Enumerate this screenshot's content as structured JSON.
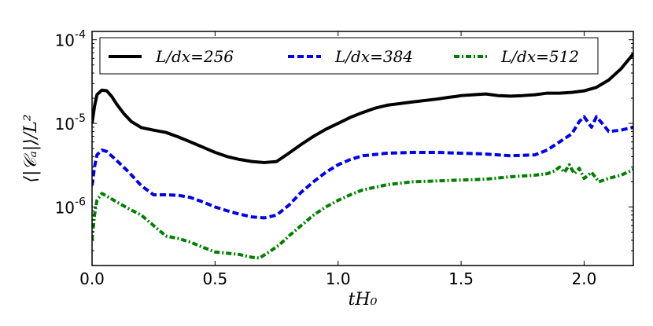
{
  "chart_data": {
    "type": "line",
    "title": "",
    "xlabel": "tH₀",
    "ylabel": "⟨|𝒞ₐ|⟩/L²",
    "xlim": [
      0.0,
      2.2
    ],
    "ylim_log10": [
      -6.7,
      -3.9
    ],
    "yscale": "log",
    "x_ticks": [
      0.0,
      0.5,
      1.0,
      1.5,
      2.0
    ],
    "x_tick_labels": [
      "0.0",
      "0.5",
      "1.0",
      "1.5",
      "2.0"
    ],
    "y_ticks": [
      {
        "base": "10",
        "exp": "-6",
        "log10": -6
      },
      {
        "base": "10",
        "exp": "-5",
        "log10": -5
      },
      {
        "base": "10",
        "exp": "-4",
        "log10": -4
      }
    ],
    "legend": {
      "placement": "top"
    },
    "series": [
      {
        "name": "L/dx = 256",
        "legend_label": "L/dx=256",
        "color": "#000000",
        "style": "solid",
        "x": [
          0.0,
          0.01,
          0.02,
          0.04,
          0.06,
          0.08,
          0.1,
          0.13,
          0.16,
          0.2,
          0.25,
          0.3,
          0.35,
          0.4,
          0.45,
          0.5,
          0.55,
          0.6,
          0.65,
          0.7,
          0.75,
          0.8,
          0.85,
          0.9,
          0.95,
          1.0,
          1.05,
          1.1,
          1.15,
          1.2,
          1.3,
          1.4,
          1.45,
          1.48,
          1.5,
          1.55,
          1.6,
          1.65,
          1.7,
          1.75,
          1.8,
          1.85,
          1.9,
          1.95,
          2.0,
          2.05,
          2.1,
          2.15,
          2.2
        ],
        "y": [
          1e-05,
          1.6e-05,
          2.2e-05,
          2.5e-05,
          2.45e-05,
          2.1e-05,
          1.7e-05,
          1.3e-05,
          1.05e-05,
          8.9e-06,
          8.3e-06,
          7.8e-06,
          6.9e-06,
          6e-06,
          5.2e-06,
          4.5e-06,
          4e-06,
          3.7e-06,
          3.5e-06,
          3.4e-06,
          3.5e-06,
          4.4e-06,
          5.6e-06,
          7e-06,
          8.5e-06,
          1e-05,
          1.18e-05,
          1.35e-05,
          1.52e-05,
          1.65e-05,
          1.8e-05,
          1.95e-05,
          2.05e-05,
          2.1e-05,
          2.15e-05,
          2.2e-05,
          2.25e-05,
          2.15e-05,
          2.12e-05,
          2.15e-05,
          2.2e-05,
          2.3e-05,
          2.3e-05,
          2.35e-05,
          2.45e-05,
          2.7e-05,
          3.3e-05,
          4.5e-05,
          6.8e-05
        ]
      },
      {
        "name": "L/dx = 384",
        "legend_label": "L/dx=384",
        "color": "#0000ee",
        "style": "dashed",
        "x": [
          0.0,
          0.01,
          0.02,
          0.04,
          0.06,
          0.1,
          0.15,
          0.2,
          0.25,
          0.3,
          0.35,
          0.4,
          0.45,
          0.5,
          0.55,
          0.6,
          0.65,
          0.7,
          0.75,
          0.8,
          0.85,
          0.9,
          0.95,
          1.0,
          1.05,
          1.1,
          1.2,
          1.3,
          1.4,
          1.5,
          1.6,
          1.7,
          1.8,
          1.85,
          1.9,
          1.95,
          1.98,
          2.0,
          2.03,
          2.05,
          2.08,
          2.1,
          2.15,
          2.2
        ],
        "y": [
          1.8e-06,
          3e-06,
          4.2e-06,
          4.8e-06,
          4.6e-06,
          3.6e-06,
          2.6e-06,
          1.8e-06,
          1.4e-06,
          1.4e-06,
          1.38e-06,
          1.3e-06,
          1.15e-06,
          1e-06,
          9e-07,
          8.2e-07,
          7.6e-07,
          7.4e-07,
          8e-07,
          1.05e-06,
          1.5e-06,
          2e-06,
          2.6e-06,
          3.2e-06,
          3.7e-06,
          4.1e-06,
          4.4e-06,
          4.5e-06,
          4.5e-06,
          4.4e-06,
          4.3e-06,
          4.1e-06,
          4.2e-06,
          4.8e-06,
          6e-06,
          7.5e-06,
          1.05e-05,
          1.2e-05,
          9e-06,
          1.2e-05,
          9.5e-06,
          8e-06,
          8.3e-06,
          9e-06
        ]
      },
      {
        "name": "L/dx = 512",
        "legend_label": "L/dx=512",
        "color": "#007f00",
        "style": "dashdot",
        "x": [
          0.0,
          0.01,
          0.02,
          0.04,
          0.06,
          0.1,
          0.15,
          0.2,
          0.25,
          0.3,
          0.35,
          0.4,
          0.45,
          0.5,
          0.55,
          0.6,
          0.65,
          0.68,
          0.72,
          0.76,
          0.8,
          0.85,
          0.9,
          0.95,
          1.0,
          1.05,
          1.1,
          1.2,
          1.3,
          1.4,
          1.5,
          1.6,
          1.7,
          1.8,
          1.85,
          1.88,
          1.9,
          1.92,
          1.94,
          1.96,
          1.98,
          2.0,
          2.03,
          2.06,
          2.1,
          2.15,
          2.2
        ],
        "y": [
          4e-07,
          8e-07,
          1.2e-06,
          1.45e-06,
          1.35e-06,
          1.15e-06,
          9.5e-07,
          8e-07,
          6e-07,
          4.5e-07,
          4.2e-07,
          3.8e-07,
          3.3e-07,
          2.9e-07,
          2.8e-07,
          2.7e-07,
          2.5e-07,
          2.45e-07,
          2.9e-07,
          3.5e-07,
          4.5e-07,
          6e-07,
          8e-07,
          1e-06,
          1.2e-06,
          1.4e-06,
          1.6e-06,
          1.85e-06,
          2e-06,
          2.05e-06,
          2.1e-06,
          2.15e-06,
          2.3e-06,
          2.4e-06,
          2.5e-06,
          2.7e-06,
          3e-06,
          2.6e-06,
          3.2e-06,
          2.5e-06,
          2.9e-06,
          2.2e-06,
          2.6e-06,
          2e-06,
          2.2e-06,
          2.4e-06,
          2.8e-06
        ]
      }
    ]
  }
}
